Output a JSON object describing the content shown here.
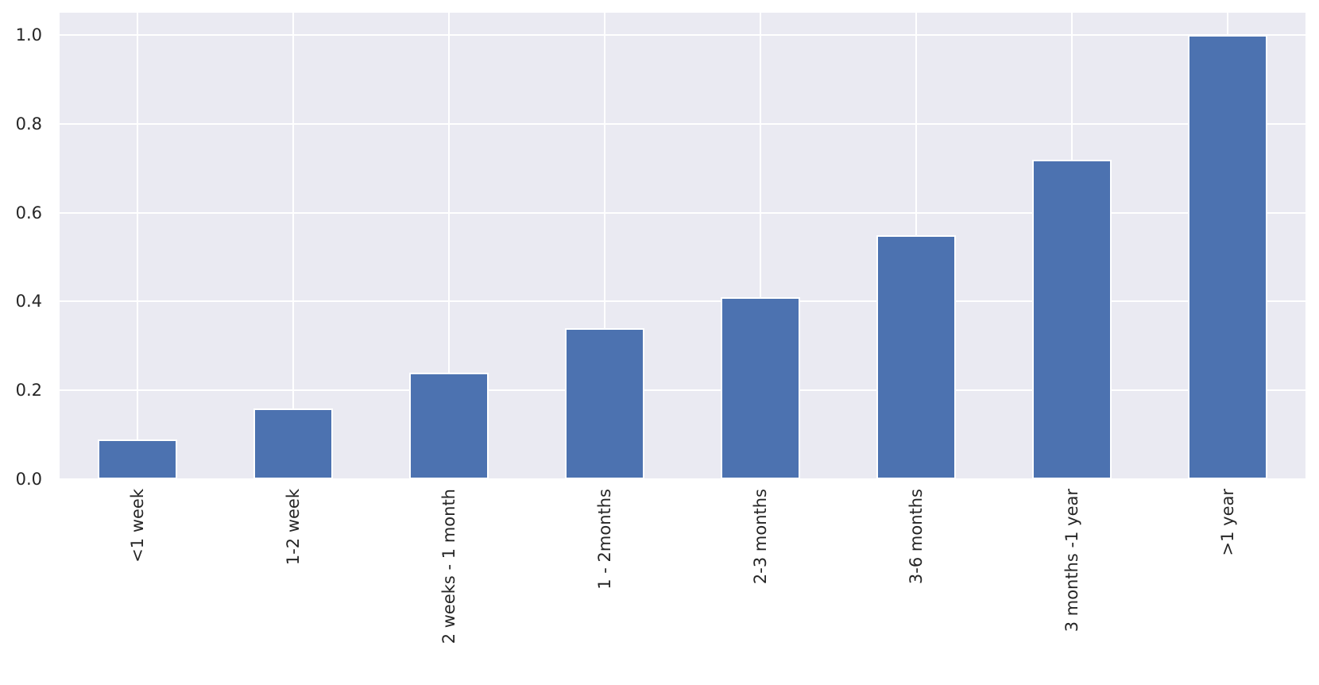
{
  "figure": {
    "background": "#ffffff"
  },
  "chart_data": {
    "type": "bar",
    "title": "",
    "xlabel": "",
    "ylabel": "",
    "categories": [
      "<1 week",
      "1-2 week",
      "2 weeks - 1 month",
      "1 - 2months",
      "2-3 months",
      "3-6 months",
      "3 months -1 year",
      ">1 year"
    ],
    "values": [
      0.09,
      0.16,
      0.24,
      0.34,
      0.41,
      0.55,
      0.72,
      1.0
    ],
    "ytick_labels": [
      "0.0",
      "0.2",
      "0.4",
      "0.6",
      "0.8",
      "1.0"
    ],
    "ytick_values": [
      0.0,
      0.2,
      0.4,
      0.6,
      0.8,
      1.0
    ],
    "ylim": [
      0,
      1.05
    ],
    "grid": true,
    "legend_position": "none",
    "x_label_rotation_degrees": 90,
    "colors": {
      "bar": "#4c72b0",
      "bar_edge": "#ffffff",
      "plot_background": "#eaeaf2",
      "gridline": "#ffffff",
      "tick_text": "#262626"
    }
  }
}
